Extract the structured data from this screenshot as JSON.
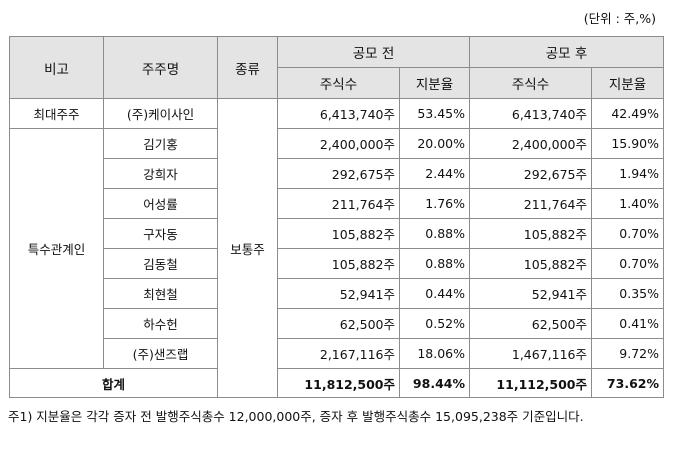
{
  "unit": "(단위 : 주,%)",
  "headers": {
    "note_col": "비고",
    "name_col": "주주명",
    "type_col": "종류",
    "before": "공모 전",
    "after": "공모 후",
    "shares": "주식수",
    "ratio": "지분율"
  },
  "rows": [
    {
      "group": "최대주주",
      "name": "(주)케이사인",
      "before_shares": "6,413,740주",
      "before_ratio": "53.45%",
      "after_shares": "6,413,740주",
      "after_ratio": "42.49%"
    },
    {
      "group": "특수관계인",
      "name": "김기홍",
      "before_shares": "2,400,000주",
      "before_ratio": "20.00%",
      "after_shares": "2,400,000주",
      "after_ratio": "15.90%"
    },
    {
      "group": "특수관계인",
      "name": "강희자",
      "before_shares": "292,675주",
      "before_ratio": "2.44%",
      "after_shares": "292,675주",
      "after_ratio": "1.94%"
    },
    {
      "group": "특수관계인",
      "name": "어성률",
      "before_shares": "211,764주",
      "before_ratio": "1.76%",
      "after_shares": "211,764주",
      "after_ratio": "1.40%"
    },
    {
      "group": "특수관계인",
      "name": "구자동",
      "before_shares": "105,882주",
      "before_ratio": "0.88%",
      "after_shares": "105,882주",
      "after_ratio": "0.70%"
    },
    {
      "group": "특수관계인",
      "name": "김동철",
      "before_shares": "105,882주",
      "before_ratio": "0.88%",
      "after_shares": "105,882주",
      "after_ratio": "0.70%"
    },
    {
      "group": "특수관계인",
      "name": "최현철",
      "before_shares": "52,941주",
      "before_ratio": "0.44%",
      "after_shares": "52,941주",
      "after_ratio": "0.35%"
    },
    {
      "group": "특수관계인",
      "name": "하수헌",
      "before_shares": "62,500주",
      "before_ratio": "0.52%",
      "after_shares": "62,500주",
      "after_ratio": "0.41%"
    },
    {
      "group": "특수관계인",
      "name": "(주)샌즈랩",
      "before_shares": "2,167,116주",
      "before_ratio": "18.06%",
      "after_shares": "1,467,116주",
      "after_ratio": "9.72%"
    }
  ],
  "share_type": "보통주",
  "groups": {
    "largest": "최대주주",
    "related": "특수관계인"
  },
  "total": {
    "label": "합계",
    "before_shares": "11,812,500주",
    "before_ratio": "98.44%",
    "after_shares": "11,112,500주",
    "after_ratio": "73.62%"
  },
  "footnote": "주1) 지분율은 각각 증자 전 발행주식총수 12,000,000주, 증자 후 발행주식총수 15,095,238주 기준입니다."
}
